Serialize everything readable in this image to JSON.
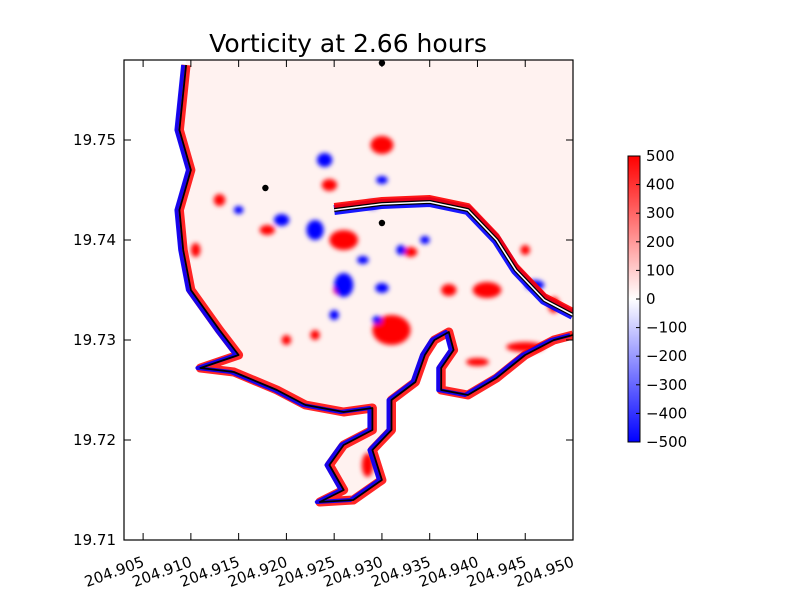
{
  "chart_data": {
    "type": "heatmap",
    "title": "Vorticity at 2.66 hours",
    "xlabel": "",
    "ylabel": "",
    "xlim": [
      204.903,
      204.95
    ],
    "ylim": [
      19.71,
      19.758
    ],
    "xticks": [
      204.905,
      204.91,
      204.915,
      204.92,
      204.925,
      204.93,
      204.935,
      204.94,
      204.945,
      204.95
    ],
    "xtick_labels": [
      "204.905",
      "204.910",
      "204.915",
      "204.920",
      "204.925",
      "204.930",
      "204.935",
      "204.940",
      "204.945",
      "204.950"
    ],
    "yticks": [
      19.71,
      19.72,
      19.73,
      19.74,
      19.75
    ],
    "ytick_labels": [
      "19.71",
      "19.72",
      "19.73",
      "19.74",
      "19.75"
    ],
    "colorbar": {
      "min": -500,
      "max": 500,
      "ticks": [
        500,
        400,
        300,
        200,
        100,
        0,
        -100,
        -200,
        -300,
        -400,
        -500
      ],
      "tick_labels": [
        "500",
        "400",
        "300",
        "200",
        "100",
        "0",
        "−100",
        "−200",
        "−300",
        "−400",
        "−500"
      ],
      "colors": [
        "#0000ff",
        "#ffffff",
        "#ff0000"
      ]
    },
    "markers": [
      {
        "x": 204.93,
        "y": 19.7577
      },
      {
        "x": 204.9178,
        "y": 19.7452
      },
      {
        "x": 204.93,
        "y": 19.7417
      }
    ],
    "coastline": [
      [
        204.9095,
        19.7575
      ],
      [
        204.9088,
        19.751
      ],
      [
        204.91,
        19.747
      ],
      [
        204.9088,
        19.743
      ],
      [
        204.9092,
        19.739
      ],
      [
        204.91,
        19.735
      ],
      [
        204.913,
        19.731
      ],
      [
        204.915,
        19.7285
      ],
      [
        204.911,
        19.7272
      ],
      [
        204.9145,
        19.7268
      ],
      [
        204.919,
        19.725
      ],
      [
        204.922,
        19.7235
      ],
      [
        204.926,
        19.7228
      ],
      [
        204.929,
        19.7232
      ],
      [
        204.929,
        19.721
      ],
      [
        204.926,
        19.7195
      ],
      [
        204.9245,
        19.7175
      ],
      [
        204.926,
        19.715
      ],
      [
        204.9235,
        19.7138
      ],
      [
        204.927,
        19.714
      ],
      [
        204.93,
        19.716
      ],
      [
        204.929,
        19.719
      ],
      [
        204.931,
        19.721
      ],
      [
        204.931,
        19.724
      ],
      [
        204.9335,
        19.7258
      ],
      [
        204.9345,
        19.7285
      ],
      [
        204.9355,
        19.73
      ],
      [
        204.937,
        19.7308
      ],
      [
        204.9375,
        19.729
      ],
      [
        204.9362,
        19.7272
      ],
      [
        204.9362,
        19.725
      ],
      [
        204.939,
        19.7245
      ],
      [
        204.942,
        19.7262
      ],
      [
        204.945,
        19.7285
      ],
      [
        204.948,
        19.73
      ],
      [
        204.95,
        19.7305
      ]
    ],
    "breakwater": [
      [
        204.925,
        19.743
      ],
      [
        204.93,
        19.7436
      ],
      [
        204.935,
        19.7438
      ],
      [
        204.939,
        19.743
      ],
      [
        204.942,
        19.74
      ],
      [
        204.944,
        19.737
      ],
      [
        204.947,
        19.734
      ],
      [
        204.95,
        19.7325
      ]
    ],
    "positive_vortices": [
      [
        204.93,
        19.7495,
        0.0012,
        0.0009
      ],
      [
        204.926,
        19.74,
        0.0015,
        0.001
      ],
      [
        204.918,
        19.741,
        0.0008,
        0.0005
      ],
      [
        204.9255,
        19.735,
        0.0006,
        0.0005
      ],
      [
        204.9245,
        19.7455,
        0.0008,
        0.0006
      ],
      [
        204.931,
        19.731,
        0.002,
        0.0015
      ],
      [
        204.9105,
        19.739,
        0.0005,
        0.0007
      ],
      [
        204.941,
        19.735,
        0.0015,
        0.0008
      ],
      [
        204.948,
        19.7335,
        0.0006,
        0.0008
      ],
      [
        204.945,
        19.739,
        0.0005,
        0.0005
      ],
      [
        204.9285,
        19.7175,
        0.0006,
        0.0012
      ],
      [
        204.92,
        19.73,
        0.0005,
        0.0005
      ],
      [
        204.945,
        19.7293,
        0.002,
        0.0005
      ],
      [
        204.94,
        19.7278,
        0.0012,
        0.0004
      ],
      [
        204.923,
        19.7305,
        0.0005,
        0.0005
      ],
      [
        204.913,
        19.744,
        0.0006,
        0.0006
      ],
      [
        204.937,
        19.735,
        0.0008,
        0.0006
      ],
      [
        204.933,
        19.7388,
        0.0007,
        0.0005
      ]
    ],
    "negative_vortices": [
      [
        204.926,
        19.7355,
        0.001,
        0.0012
      ],
      [
        204.9195,
        19.742,
        0.0008,
        0.0006
      ],
      [
        204.923,
        19.741,
        0.0009,
        0.001
      ],
      [
        204.928,
        19.738,
        0.0006,
        0.0004
      ],
      [
        204.925,
        19.7325,
        0.0005,
        0.0005
      ],
      [
        204.93,
        19.7352,
        0.0007,
        0.0005
      ],
      [
        204.932,
        19.739,
        0.0005,
        0.0005
      ],
      [
        204.929,
        19.7435,
        0.0006,
        0.0004
      ],
      [
        204.915,
        19.743,
        0.0005,
        0.0004
      ],
      [
        204.9295,
        19.732,
        0.0005,
        0.0004
      ],
      [
        204.924,
        19.748,
        0.0008,
        0.0007
      ],
      [
        204.946,
        19.7355,
        0.001,
        0.0005
      ],
      [
        204.93,
        19.746,
        0.0006,
        0.0004
      ],
      [
        204.9345,
        19.74,
        0.0005,
        0.0004
      ]
    ]
  }
}
